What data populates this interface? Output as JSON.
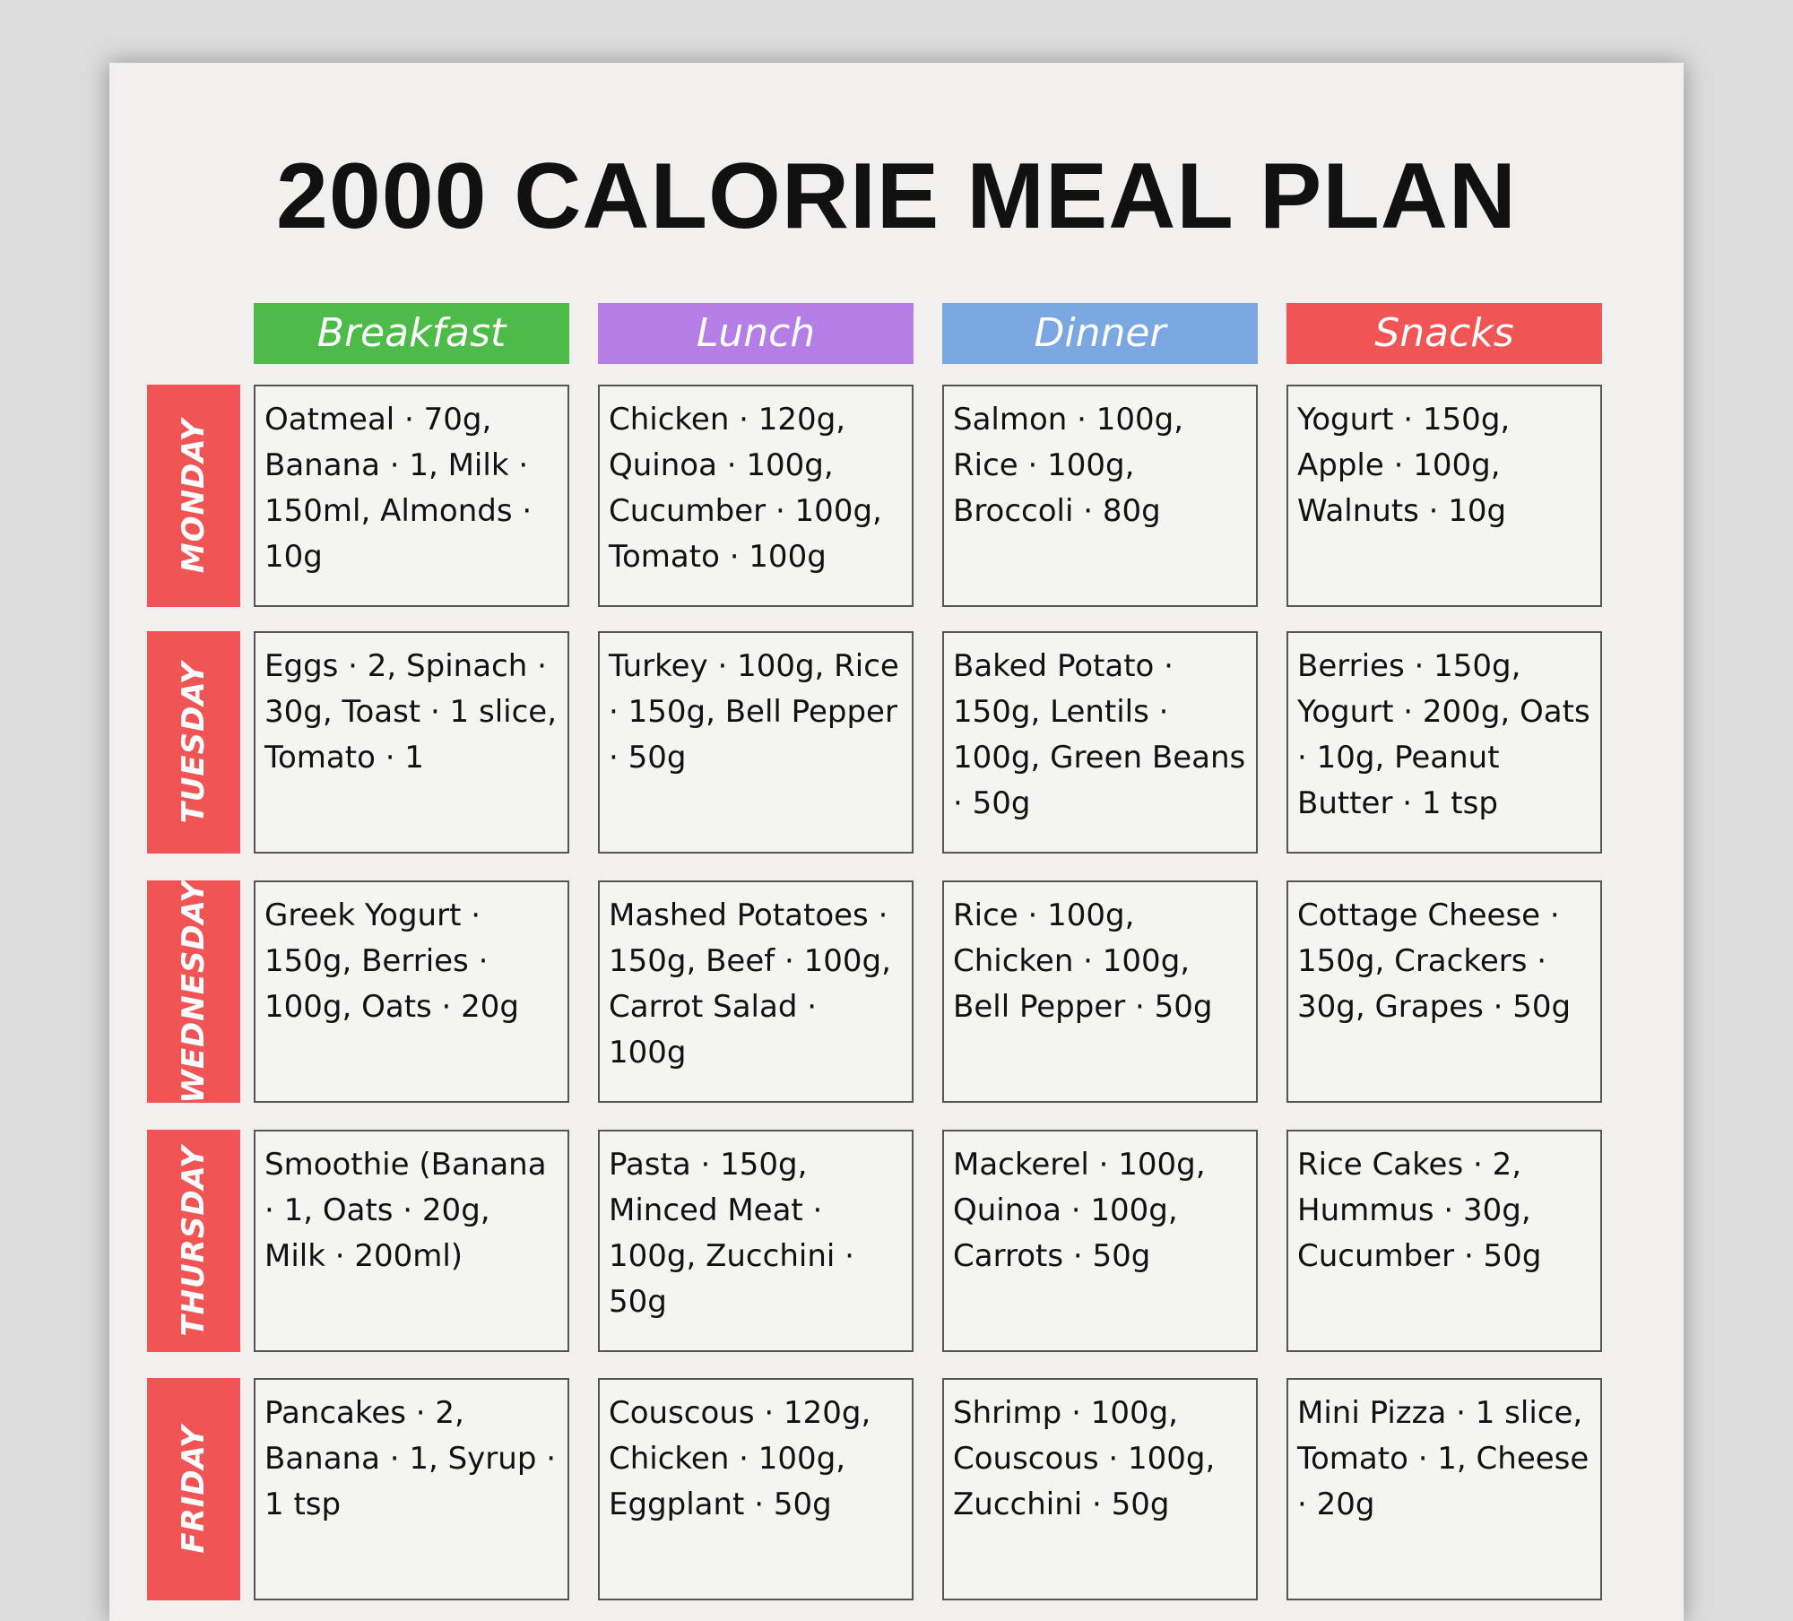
{
  "title": "2000 CALORIE MEAL PLAN",
  "columns": [
    {
      "label": "Breakfast",
      "color": "#4cbb47"
    },
    {
      "label": "Lunch",
      "color": "#b57ee6"
    },
    {
      "label": "Dinner",
      "color": "#7ba7e0"
    },
    {
      "label": "Snacks",
      "color": "#f05454"
    }
  ],
  "rows": [
    {
      "day": "MONDAY",
      "meals": [
        "Oatmeal · 70g, Banana · 1, Milk · 150ml, Almonds · 10g",
        "Chicken · 120g, Quinoa · 100g, Cucumber · 100g, Tomato · 100g",
        "Salmon · 100g, Rice · 100g, Broccoli · 80g",
        "Yogurt · 150g, Apple · 100g, Walnuts · 10g"
      ]
    },
    {
      "day": "TUESDAY",
      "meals": [
        "Eggs · 2, Spinach · 30g, Toast · 1 slice, Tomato · 1",
        "Turkey · 100g, Rice · 150g, Bell Pepper · 50g",
        "Baked Potato · 150g, Lentils · 100g, Green Beans · 50g",
        "Berries · 150g, Yogurt · 200g, Oats · 10g, Peanut Butter · 1 tsp"
      ]
    },
    {
      "day": "WEDNESDAY",
      "meals": [
        "Greek Yogurt · 150g, Berries · 100g, Oats · 20g",
        "Mashed Potatoes · 150g, Beef · 100g, Carrot Salad · 100g",
        "Rice · 100g, Chicken · 100g, Bell Pepper · 50g",
        "Cottage Cheese · 150g, Crackers · 30g, Grapes · 50g"
      ]
    },
    {
      "day": "THURSDAY",
      "meals": [
        "Smoothie (Banana · 1, Oats · 20g, Milk · 200ml)",
        "Pasta · 150g, Minced Meat · 100g, Zucchini · 50g",
        "Mackerel · 100g, Quinoa · 100g, Carrots · 50g",
        "Rice Cakes · 2, Hummus · 30g, Cucumber · 50g"
      ]
    },
    {
      "day": "FRIDAY",
      "meals": [
        "Pancakes · 2, Banana · 1, Syrup · 1 tsp",
        "Couscous · 120g, Chicken · 100g, Eggplant · 50g",
        "Shrimp · 100g, Couscous · 100g, Zucchini · 50g",
        "Mini Pizza · 1 slice, Tomato · 1, Cheese · 20g"
      ]
    }
  ]
}
